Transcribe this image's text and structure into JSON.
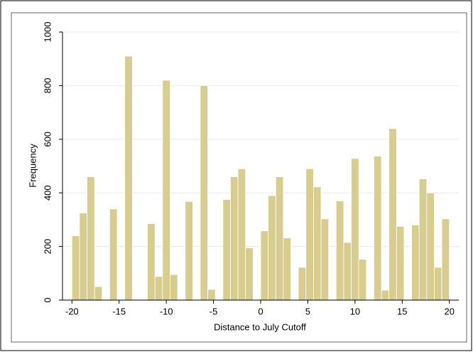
{
  "chart_data": {
    "type": "histogram",
    "x_label": "Distance to July Cutoff",
    "y_label": "Frequency",
    "bins": [
      -20,
      -19.2,
      -18.4,
      -17.6,
      -16.8,
      -16,
      -15.2,
      -14.4,
      -13.6,
      -12.8,
      -12,
      -11.2,
      -10.4,
      -9.6,
      -8.8,
      -8,
      -7.2,
      -6.4,
      -5.6,
      -4.8,
      -4,
      -3.2,
      -2.4,
      -1.6,
      -0.8,
      0,
      0.8,
      1.6,
      2.4,
      3.2,
      4,
      4.8,
      5.6,
      6.4,
      7.2,
      8,
      8.8,
      9.6,
      10.4,
      11.2,
      12,
      12.8,
      13.6,
      14.4,
      15.2,
      16,
      16.8,
      17.6,
      18.4,
      19.2,
      20
    ],
    "values": [
      240,
      325,
      460,
      50,
      0,
      340,
      0,
      910,
      0,
      0,
      285,
      88,
      820,
      95,
      0,
      368,
      0,
      800,
      40,
      0,
      375,
      460,
      490,
      195,
      0,
      258,
      390,
      460,
      232,
      0,
      122,
      490,
      422,
      303,
      0,
      370,
      215,
      528,
      152,
      0,
      537,
      37,
      640,
      275,
      0,
      280,
      452,
      400,
      122,
      303
    ],
    "color": "#d8cc8f",
    "xlim": [
      -21,
      21
    ],
    "xticks": [
      -20,
      -15,
      -10,
      -5,
      0,
      5,
      10,
      15,
      20
    ],
    "ylim": [
      0,
      1000
    ],
    "yticks": [
      0,
      200,
      400,
      600,
      800,
      1000
    ],
    "grid": true
  }
}
